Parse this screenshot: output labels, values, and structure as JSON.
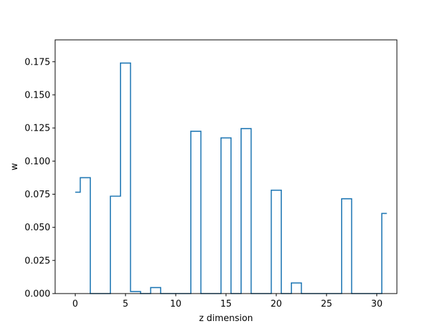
{
  "chart_data": {
    "type": "line",
    "drawstyle": "steps-mid",
    "xlabel": "z dimension",
    "ylabel": "w",
    "xlim": [
      -2.0,
      32.0
    ],
    "ylim": [
      0.0,
      0.1915
    ],
    "xticks": [
      0,
      5,
      10,
      15,
      20,
      25,
      30
    ],
    "yticks": [
      0.0,
      0.025,
      0.05,
      0.075,
      0.1,
      0.125,
      0.15,
      0.175
    ],
    "ytick_labels": [
      "0.000",
      "0.025",
      "0.050",
      "0.075",
      "0.100",
      "0.125",
      "0.150",
      "0.175"
    ],
    "grid": false,
    "series": [
      {
        "color": "#1f77b4",
        "x": [
          0,
          1,
          2,
          3,
          4,
          5,
          6,
          7,
          8,
          9,
          10,
          11,
          12,
          13,
          14,
          15,
          16,
          17,
          18,
          19,
          20,
          21,
          22,
          23,
          24,
          25,
          26,
          27,
          28,
          29,
          30,
          31
        ],
        "y": [
          0.0765,
          0.0875,
          0.0,
          0.0,
          0.0735,
          0.174,
          0.0015,
          0.0,
          0.0045,
          0.0,
          0.0,
          0.0,
          0.1225,
          0.0,
          0.0,
          0.1175,
          0.0,
          0.1245,
          0.0,
          0.0,
          0.078,
          0.0,
          0.008,
          0.0,
          0.0,
          0.0,
          0.0,
          0.0715,
          0.0,
          0.0,
          0.0,
          0.0605
        ]
      }
    ]
  }
}
